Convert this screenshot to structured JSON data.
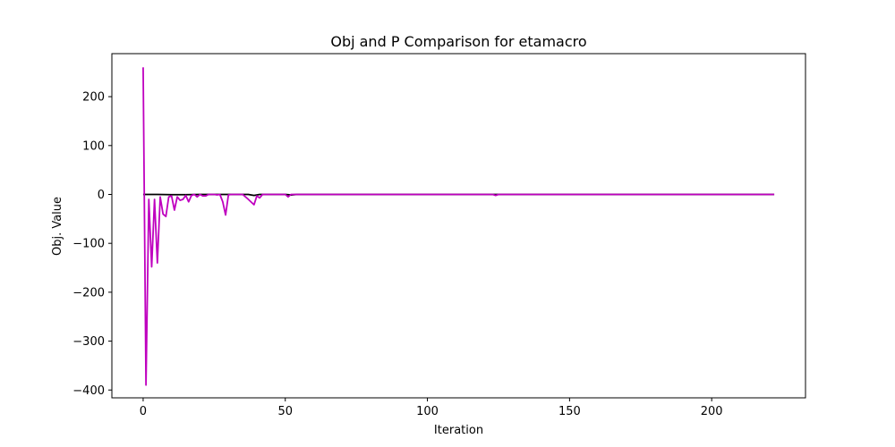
{
  "colors": {
    "obj_series": "#000000",
    "p_series": "#bf00bf",
    "axes": "#000000",
    "background": "#ffffff"
  },
  "chart_data": {
    "type": "line",
    "title": "Obj and P Comparison for etamacro",
    "xlabel": "Iteration",
    "ylabel": "Obj. Value",
    "xlim": [
      -11,
      233
    ],
    "ylim": [
      -416,
      288
    ],
    "xticks": [
      0,
      50,
      100,
      150,
      200
    ],
    "xtick_labels": [
      "0",
      "50",
      "100",
      "150",
      "200"
    ],
    "yticks": [
      -400,
      -300,
      -200,
      -100,
      0,
      100,
      200
    ],
    "ytick_labels": [
      "−400",
      "−300",
      "−200",
      "−100",
      "0",
      "100",
      "200"
    ],
    "grid": false,
    "legend": "none",
    "series": [
      {
        "color": "#000000",
        "points": [
          [
            0,
            0
          ],
          [
            5,
            0
          ],
          [
            10,
            -0.5
          ],
          [
            15,
            -0.5
          ],
          [
            20,
            0
          ],
          [
            25,
            0
          ],
          [
            30,
            0
          ],
          [
            37,
            0
          ],
          [
            39,
            -2
          ],
          [
            41,
            0
          ],
          [
            50,
            0
          ],
          [
            52,
            -1
          ],
          [
            54,
            0
          ],
          [
            100,
            0
          ],
          [
            150,
            0
          ],
          [
            222,
            0
          ]
        ]
      },
      {
        "color": "#bf00bf",
        "points": [
          [
            0,
            260
          ],
          [
            1,
            -390
          ],
          [
            2,
            -10
          ],
          [
            3,
            -148
          ],
          [
            4,
            -10
          ],
          [
            5,
            -140
          ],
          [
            6,
            -5
          ],
          [
            7,
            -40
          ],
          [
            8,
            -45
          ],
          [
            9,
            -5
          ],
          [
            10,
            -3
          ],
          [
            11,
            -32
          ],
          [
            12,
            -5
          ],
          [
            13,
            -12
          ],
          [
            14,
            -10
          ],
          [
            15,
            -2
          ],
          [
            16,
            -15
          ],
          [
            17,
            -2
          ],
          [
            18,
            0
          ],
          [
            19,
            -5
          ],
          [
            20,
            0
          ],
          [
            21,
            -3
          ],
          [
            22,
            -3
          ],
          [
            23,
            0
          ],
          [
            24,
            0
          ],
          [
            25,
            0
          ],
          [
            26,
            -1
          ],
          [
            27,
            0
          ],
          [
            28,
            -15
          ],
          [
            29,
            -42
          ],
          [
            30,
            -1
          ],
          [
            31,
            0
          ],
          [
            32,
            0
          ],
          [
            35,
            0
          ],
          [
            37,
            -10
          ],
          [
            39,
            -21
          ],
          [
            40,
            -3
          ],
          [
            41,
            -7
          ],
          [
            42,
            0
          ],
          [
            45,
            0
          ],
          [
            50,
            0
          ],
          [
            51,
            -5
          ],
          [
            52,
            0
          ],
          [
            55,
            0
          ],
          [
            60,
            0
          ],
          [
            100,
            0
          ],
          [
            123,
            0
          ],
          [
            124,
            -2
          ],
          [
            125,
            0
          ],
          [
            150,
            0
          ],
          [
            222,
            0
          ]
        ]
      }
    ]
  }
}
